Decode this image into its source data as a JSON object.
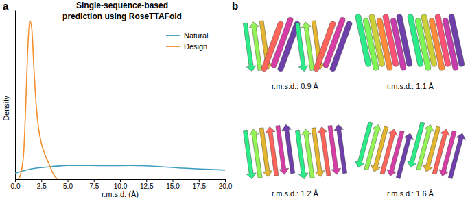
{
  "chart_data": {
    "type": "line",
    "title": [
      "Single-sequence-based",
      "prediction using RoseTTAFold"
    ],
    "x_label": "r.m.s.d. (Å)",
    "y_label": "Density",
    "xlim": [
      0,
      20
    ],
    "xticks": [
      {
        "value": 0,
        "label": "0.0"
      },
      {
        "value": 2.5,
        "label": "2.5"
      },
      {
        "value": 5,
        "label": "5.0"
      },
      {
        "value": 7.5,
        "label": "7.5"
      },
      {
        "value": 10,
        "label": "10.0"
      },
      {
        "value": 12.5,
        "label": "12.5"
      },
      {
        "value": 15,
        "label": "15.0"
      },
      {
        "value": 17.5,
        "label": "17.5"
      },
      {
        "value": 20,
        "label": "20.0"
      }
    ],
    "ylim": [
      0,
      0.85
    ],
    "tick_labels": "x",
    "legend": "upper right",
    "series": [
      {
        "name": "Natural",
        "color": "#3c9dbd",
        "x": [
          0,
          1,
          2,
          3,
          4,
          5,
          7,
          9,
          11,
          12,
          14,
          16,
          18,
          20
        ],
        "values": [
          0.03,
          0.045,
          0.055,
          0.06,
          0.065,
          0.068,
          0.068,
          0.067,
          0.068,
          0.067,
          0.062,
          0.055,
          0.05,
          0.045
        ]
      },
      {
        "name": "Design",
        "color": "#f28e2b",
        "x": [
          0.3,
          0.5,
          0.8,
          1.0,
          1.2,
          1.4,
          1.6,
          1.8,
          2.0,
          2.2,
          2.5,
          2.8,
          3.2,
          3.6,
          4.0
        ],
        "values": [
          0,
          0.02,
          0.12,
          0.35,
          0.65,
          0.8,
          0.75,
          0.55,
          0.38,
          0.27,
          0.18,
          0.13,
          0.08,
          0.03,
          0
        ]
      }
    ]
  },
  "panel_labels": [
    "a",
    "b"
  ],
  "structures": [
    {
      "caption": "r.m.s.d.: 0.9 Å"
    },
    {
      "caption": "r.m.s.d.: 1.1 Å"
    },
    {
      "caption": "r.m.s.d.: 1.2 Å"
    },
    {
      "caption": "r.m.s.d.: 1.6 Å"
    }
  ]
}
